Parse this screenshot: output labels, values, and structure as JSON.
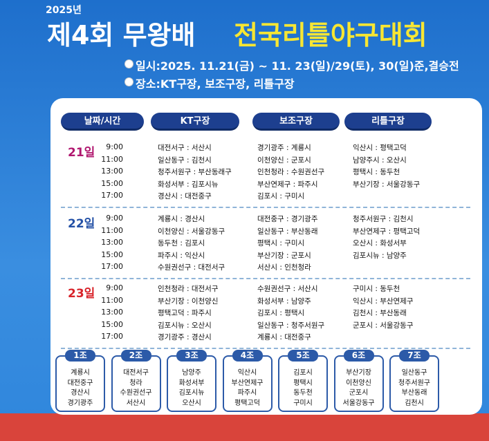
{
  "header": {
    "year": "2025년",
    "title_white": "제4회 무왕배",
    "title_yellow": "전국리틀야구대회",
    "date_line": "일시:2025. 11.21(금) ~ 11. 23(일)/29(토), 30(일)준,결승전",
    "venue_line": "장소:KT구장, 보조구장, 리틀구장"
  },
  "table": {
    "columns": [
      "날짜/시간",
      "KT구장",
      "보조구장",
      "리틀구장"
    ],
    "days": [
      {
        "day": "21일",
        "rows": [
          [
            "9:00",
            "대전서구 : 서산시",
            "경기광주 : 계룡시",
            "익산시 : 평택고덕"
          ],
          [
            "11:00",
            "일산동구 : 김천시",
            "이천양신 : 군포시",
            "남양주시 : 오산시"
          ],
          [
            "13:00",
            "청주서원구 : 부산동래구",
            "인천청라 : 수원권선구",
            "평택시 : 동두천"
          ],
          [
            "15:00",
            "화성서부 : 김포시뉴",
            "부산연제구 : 파주시",
            "부산기장 : 서울강동구"
          ],
          [
            "17:00",
            "경산시 : 대전중구",
            "김포시 : 구미시"
          ]
        ]
      },
      {
        "day": "22일",
        "rows": [
          [
            "9:00",
            "계룡시 : 경산시",
            "대전중구 : 경기광주",
            "청주서원구 : 김천시"
          ],
          [
            "11:00",
            "이천양신 : 서울강동구",
            "일산동구 : 부산동래",
            "부산연제구 : 평택고덕"
          ],
          [
            "13:00",
            "동두천 : 김포시",
            "평택시 : 구미시",
            "오산시 : 화성서부"
          ],
          [
            "15:00",
            "파주시 : 익산시",
            "부산기장 : 군포시",
            "김포시뉴 : 남양주"
          ],
          [
            "17:00",
            "수원권선구 : 대전서구",
            "서산시 : 인천청라"
          ]
        ]
      },
      {
        "day": "23일",
        "rows": [
          [
            "9:00",
            "인천청라 : 대전서구",
            "수원권선구 : 서산시",
            "구미시 : 동두천"
          ],
          [
            "11:00",
            "부산기장 : 이천양신",
            "화성서부 : 남양주",
            "익산시 : 부산연제구"
          ],
          [
            "13:00",
            "평택고덕 : 파주시",
            "김포시 : 평택시",
            "김천시 : 부산동래"
          ],
          [
            "15:00",
            "김포시뉴 : 오산시",
            "일산동구 : 청주서원구",
            "군포시 : 서울강동구"
          ],
          [
            "17:00",
            "경기광주 : 경산시",
            "계룡시 : 대전중구"
          ]
        ]
      }
    ]
  },
  "groups": [
    {
      "name": "1조",
      "teams": [
        "계룡시",
        "대전중구",
        "경산시",
        "경기광주"
      ]
    },
    {
      "name": "2조",
      "teams": [
        "대전서구",
        "청라",
        "수원권선구",
        "서산시"
      ]
    },
    {
      "name": "3조",
      "teams": [
        "남양주",
        "화성서부",
        "김포시뉴",
        "오산시"
      ]
    },
    {
      "name": "4조",
      "teams": [
        "익산시",
        "부산연제구",
        "파주시",
        "평택고덕"
      ]
    },
    {
      "name": "5조",
      "teams": [
        "김포시",
        "평택시",
        "동두천",
        "구미시"
      ]
    },
    {
      "name": "6조",
      "teams": [
        "부산기장",
        "이천양신",
        "군포시",
        "서울강동구"
      ]
    },
    {
      "name": "7조",
      "teams": [
        "일산동구",
        "청주서원구",
        "부산동래",
        "김천시"
      ]
    }
  ]
}
